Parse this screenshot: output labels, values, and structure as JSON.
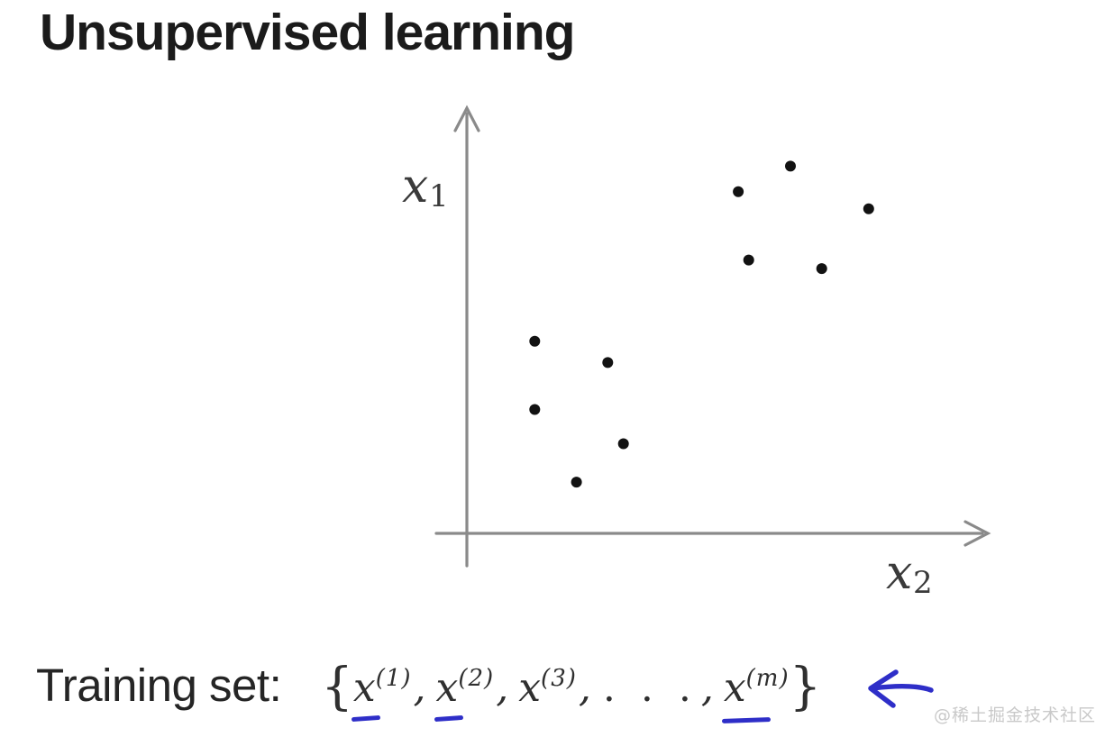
{
  "title": "Unsupervised learning",
  "colors": {
    "ink": "#1b1b1b",
    "text": "#2d2d2d",
    "axis_gray": "#8a8a8a",
    "dot": "#121212",
    "annotation_blue": "#2e2ec8",
    "watermark_gray": "#c9c9c9",
    "background": "#ffffff"
  },
  "chart_data": {
    "type": "scatter",
    "title": "",
    "xlabel": "x_2",
    "ylabel": "x_1",
    "axis_labels": {
      "y": {
        "base": "x",
        "sub": "1"
      },
      "x": {
        "base": "x",
        "sub": "2"
      }
    },
    "xlim": [
      0,
      10
    ],
    "ylim": [
      0,
      10
    ],
    "grid": false,
    "ticks": "none",
    "marker": "filled-dot",
    "points": [
      {
        "x": 6.2,
        "y": 8.6
      },
      {
        "x": 5.2,
        "y": 8.0
      },
      {
        "x": 7.7,
        "y": 7.6
      },
      {
        "x": 5.4,
        "y": 6.4
      },
      {
        "x": 6.8,
        "y": 6.2
      },
      {
        "x": 1.3,
        "y": 4.5
      },
      {
        "x": 2.7,
        "y": 4.0
      },
      {
        "x": 1.3,
        "y": 2.9
      },
      {
        "x": 3.0,
        "y": 2.1
      },
      {
        "x": 2.1,
        "y": 1.2
      }
    ],
    "clusters": [
      {
        "name": "upper-right",
        "point_indices": [
          0,
          1,
          2,
          3,
          4
        ]
      },
      {
        "name": "lower-left",
        "point_indices": [
          5,
          6,
          7,
          8,
          9
        ]
      }
    ]
  },
  "training_set": {
    "label": "Training set:",
    "brace_open": "{",
    "brace_close": "}",
    "separator": ",",
    "terms": [
      {
        "base": "x",
        "sup": "(1)",
        "underline": "short"
      },
      {
        "base": "x",
        "sup": "(2)",
        "underline": "short"
      },
      {
        "base": "x",
        "sup": "(3)",
        "underline": "none"
      },
      {
        "ellipsis": ". . ."
      },
      {
        "base": "x",
        "sup": "(m)",
        "underline": "long"
      }
    ],
    "annotation_icon": "hand-drawn-left-arrow-icon"
  },
  "watermark": {
    "text": "@稀土掘金技术社区"
  }
}
